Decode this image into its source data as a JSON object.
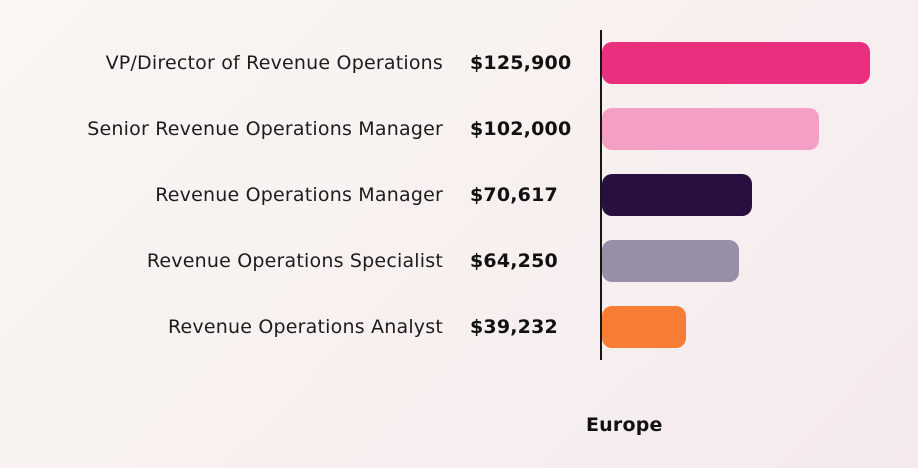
{
  "chart_data": {
    "type": "bar",
    "orientation": "horizontal",
    "title": "",
    "group_label": "Europe",
    "max_value": 125900,
    "categories": [
      "VP/Director of Revenue Operations",
      "Senior Revenue Operations Manager",
      "Revenue Operations Manager",
      "Revenue Operations Specialist",
      "Revenue Operations Analyst"
    ],
    "values": [
      125900,
      102000,
      70617,
      64250,
      39232
    ],
    "value_labels": [
      "$125,900",
      "$102,000",
      "$70,617",
      "$64,250",
      "$39,232"
    ],
    "colors": [
      "#ea2f7f",
      "#f59fc6",
      "#27103f",
      "#978fa7",
      "#f87d34"
    ],
    "axis_color": "#161616",
    "legend_position": "none",
    "grid": false
  }
}
